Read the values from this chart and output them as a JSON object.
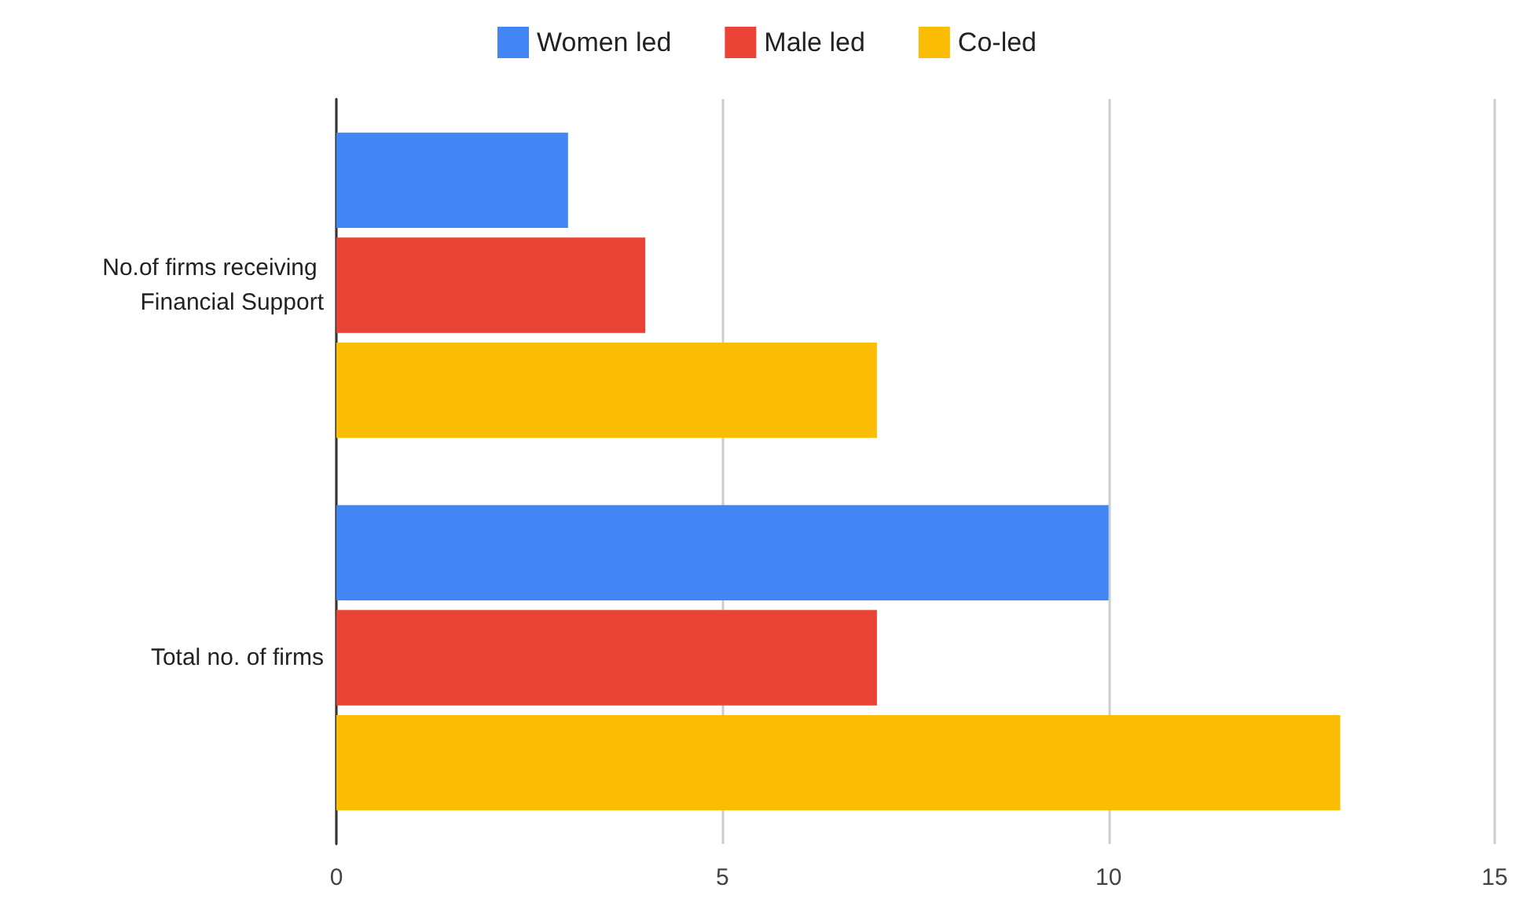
{
  "chart_data": {
    "type": "bar",
    "orientation": "horizontal",
    "categories": [
      "No.of firms receiving Financial Support",
      "Total no. of firms"
    ],
    "series": [
      {
        "name": "Women led",
        "color": "#4285f4",
        "values": [
          3,
          10
        ]
      },
      {
        "name": "Male led",
        "color": "#ea4335",
        "values": [
          4,
          7
        ]
      },
      {
        "name": "Co-led",
        "color": "#fbbc04",
        "values": [
          7,
          13
        ]
      }
    ],
    "xlim": [
      0,
      15
    ],
    "xticks": [
      0,
      5,
      10,
      15
    ],
    "grid": "x",
    "legend": "top"
  }
}
